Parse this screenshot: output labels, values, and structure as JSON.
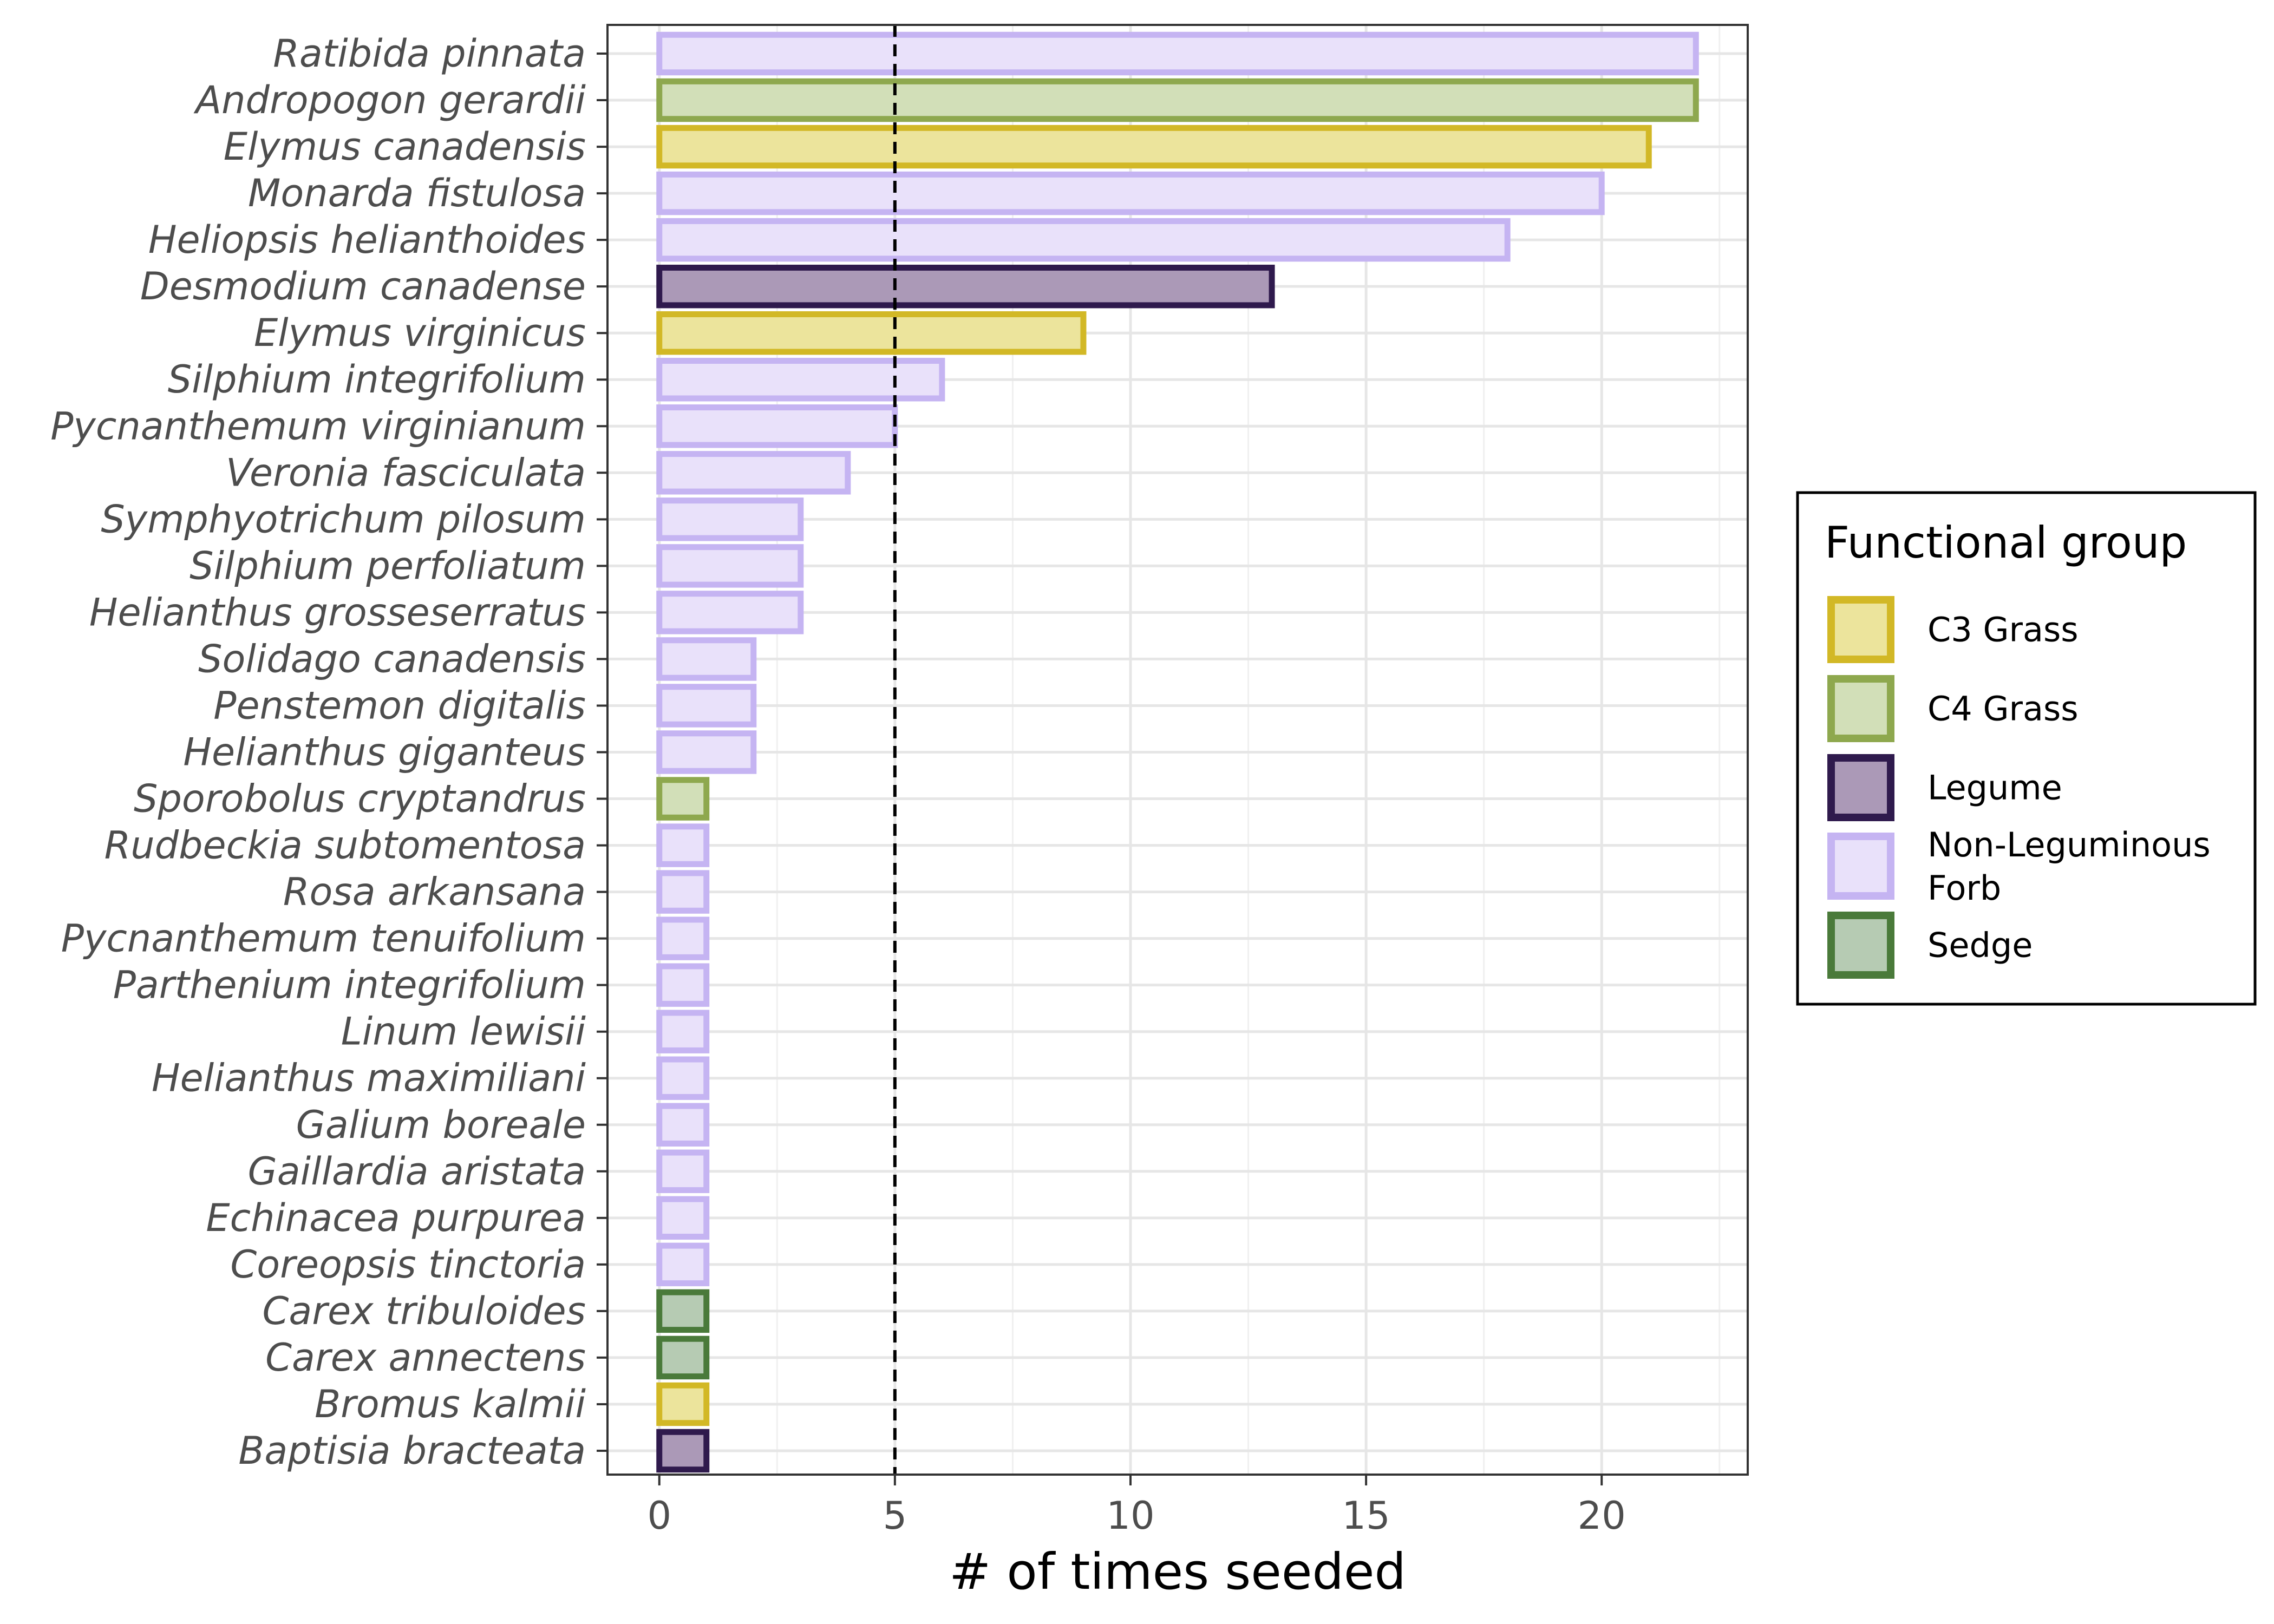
{
  "chart_data": {
    "type": "bar",
    "orientation": "horizontal",
    "xlabel": "# of times seeded",
    "ylabel": "",
    "xlim": [
      -1.1,
      23.1
    ],
    "xticks": [
      0,
      5,
      10,
      15,
      20
    ],
    "reference_line": {
      "x": 5,
      "style": "dashed"
    },
    "grid": true,
    "legend": {
      "title": "Functional group",
      "placement": "right",
      "entries": [
        {
          "label": "C3 Grass",
          "group": "C3 Grass"
        },
        {
          "label": "C4 Grass",
          "group": "C4 Grass"
        },
        {
          "label": "Legume",
          "group": "Legume"
        },
        {
          "label": "Non-Leguminous Forb",
          "group": "Non-Leguminous Forb"
        },
        {
          "label": "Sedge",
          "group": "Sedge"
        }
      ]
    },
    "group_colors": {
      "C3 Grass": {
        "fill": "#ece49c",
        "stroke": "#d2b826"
      },
      "C4 Grass": {
        "fill": "#d2dfb8",
        "stroke": "#8ea84e"
      },
      "Legume": {
        "fill": "#ab99b7",
        "stroke": "#2f1a4d"
      },
      "Non-Leguminous Forb": {
        "fill": "#e9e1fa",
        "stroke": "#c5b4f2"
      },
      "Sedge": {
        "fill": "#b6cbb3",
        "stroke": "#4a7a3a"
      }
    },
    "bars": [
      {
        "species": "Ratibida pinnata",
        "value": 22,
        "group": "Non-Leguminous Forb"
      },
      {
        "species": "Andropogon gerardii",
        "value": 22,
        "group": "C4 Grass"
      },
      {
        "species": "Elymus canadensis",
        "value": 21,
        "group": "C3 Grass"
      },
      {
        "species": "Monarda fistulosa",
        "value": 20,
        "group": "Non-Leguminous Forb"
      },
      {
        "species": "Heliopsis helianthoides",
        "value": 18,
        "group": "Non-Leguminous Forb"
      },
      {
        "species": "Desmodium canadense",
        "value": 13,
        "group": "Legume"
      },
      {
        "species": "Elymus virginicus",
        "value": 9,
        "group": "C3 Grass"
      },
      {
        "species": "Silphium integrifolium",
        "value": 6,
        "group": "Non-Leguminous Forb"
      },
      {
        "species": "Pycnanthemum virginianum",
        "value": 5,
        "group": "Non-Leguminous Forb"
      },
      {
        "species": "Veronia fasciculata",
        "value": 4,
        "group": "Non-Leguminous Forb"
      },
      {
        "species": "Symphyotrichum pilosum",
        "value": 3,
        "group": "Non-Leguminous Forb"
      },
      {
        "species": "Silphium perfoliatum",
        "value": 3,
        "group": "Non-Leguminous Forb"
      },
      {
        "species": "Helianthus grosseserratus",
        "value": 3,
        "group": "Non-Leguminous Forb"
      },
      {
        "species": "Solidago canadensis",
        "value": 2,
        "group": "Non-Leguminous Forb"
      },
      {
        "species": "Penstemon digitalis",
        "value": 2,
        "group": "Non-Leguminous Forb"
      },
      {
        "species": "Helianthus giganteus",
        "value": 2,
        "group": "Non-Leguminous Forb"
      },
      {
        "species": "Sporobolus cryptandrus",
        "value": 1,
        "group": "C4 Grass"
      },
      {
        "species": "Rudbeckia subtomentosa",
        "value": 1,
        "group": "Non-Leguminous Forb"
      },
      {
        "species": "Rosa arkansana",
        "value": 1,
        "group": "Non-Leguminous Forb"
      },
      {
        "species": "Pycnanthemum tenuifolium",
        "value": 1,
        "group": "Non-Leguminous Forb"
      },
      {
        "species": "Parthenium integrifolium",
        "value": 1,
        "group": "Non-Leguminous Forb"
      },
      {
        "species": "Linum lewisii",
        "value": 1,
        "group": "Non-Leguminous Forb"
      },
      {
        "species": "Helianthus maximiliani",
        "value": 1,
        "group": "Non-Leguminous Forb"
      },
      {
        "species": "Galium boreale",
        "value": 1,
        "group": "Non-Leguminous Forb"
      },
      {
        "species": "Gaillardia aristata",
        "value": 1,
        "group": "Non-Leguminous Forb"
      },
      {
        "species": "Echinacea purpurea",
        "value": 1,
        "group": "Non-Leguminous Forb"
      },
      {
        "species": "Coreopsis tinctoria",
        "value": 1,
        "group": "Non-Leguminous Forb"
      },
      {
        "species": "Carex tribuloides",
        "value": 1,
        "group": "Sedge"
      },
      {
        "species": "Carex annectens",
        "value": 1,
        "group": "Sedge"
      },
      {
        "species": "Bromus kalmii",
        "value": 1,
        "group": "C3 Grass"
      },
      {
        "species": "Baptisia bracteata",
        "value": 1,
        "group": "Legume"
      }
    ]
  }
}
